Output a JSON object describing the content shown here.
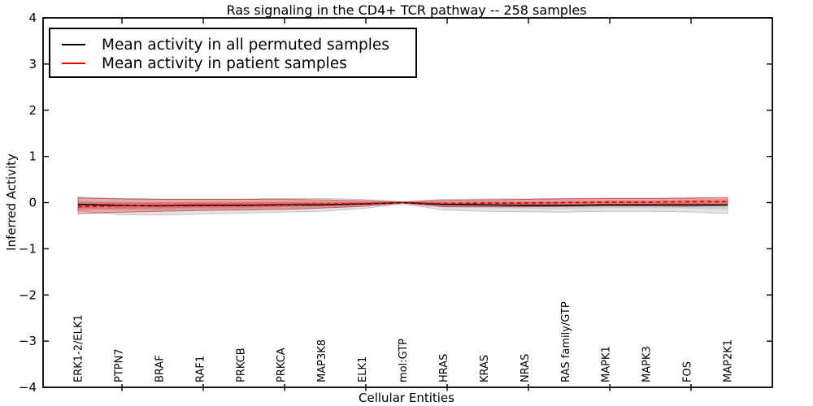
{
  "figure": {
    "title": "Ras signaling in the CD4+ TCR pathway -- 258 samples",
    "xlabel": "Cellular Entities",
    "ylabel": "Inferred Activity"
  },
  "legend": {
    "entries": [
      {
        "label": "Mean activity in all permuted samples",
        "color": "#000000"
      },
      {
        "label": "Mean activity in patient samples",
        "color": "#e60000"
      }
    ]
  },
  "chart_data": {
    "type": "line",
    "title": "Ras signaling in the CD4+ TCR pathway -- 258 samples",
    "xlabel": "Cellular Entities",
    "ylabel": "Inferred Activity",
    "ylim": [
      -4,
      4
    ],
    "grid": false,
    "legend_position": "upper left",
    "ytick_values": [
      4,
      3,
      2,
      1,
      0,
      -1,
      -2,
      -3,
      -4
    ],
    "ytick_labels": [
      "4",
      "3",
      "2",
      "1",
      "0",
      "−1",
      "−2",
      "−3",
      "−4"
    ],
    "categories": [
      "ERK1-2/ELK1",
      "PTPN7",
      "BRAF",
      "RAF1",
      "PRKCB",
      "PRKCA",
      "MAP3K8",
      "ELK1",
      "mol:GTP",
      "HRAS",
      "KRAS",
      "NRAS",
      "RAS family/GTP",
      "MAPK1",
      "MAPK3",
      "FOS",
      "MAP2K1"
    ],
    "series": [
      {
        "name": "Mean activity in all permuted samples",
        "color": "#000000",
        "line_style": "solid",
        "band_fill": "rgba(60,60,60,0.14)",
        "band_edge": "rgba(0,0,0,0.18)",
        "values": [
          -0.04,
          -0.06,
          -0.07,
          -0.06,
          -0.06,
          -0.05,
          -0.05,
          -0.03,
          0.0,
          -0.04,
          -0.05,
          -0.06,
          -0.06,
          -0.05,
          -0.05,
          -0.05,
          -0.05
        ],
        "band_upper": [
          0.12,
          0.09,
          0.08,
          0.08,
          0.08,
          0.09,
          0.09,
          0.07,
          0.02,
          0.07,
          0.08,
          0.08,
          0.09,
          0.09,
          0.09,
          0.09,
          0.08
        ],
        "band_lower": [
          -0.18,
          -0.26,
          -0.27,
          -0.25,
          -0.23,
          -0.21,
          -0.19,
          -0.13,
          -0.03,
          -0.16,
          -0.19,
          -0.2,
          -0.21,
          -0.19,
          -0.19,
          -0.2,
          -0.24
        ]
      },
      {
        "name": "Mean activity in patient samples",
        "color": "#e60000",
        "line_style": "dashed",
        "band_fill": "rgba(235,25,25,0.28)",
        "band_edge": "rgba(190,0,0,0.50)",
        "values": [
          -0.09,
          -0.07,
          -0.06,
          -0.05,
          -0.05,
          -0.04,
          -0.03,
          -0.02,
          0.0,
          -0.02,
          -0.01,
          -0.01,
          0.0,
          0.01,
          0.01,
          0.02,
          0.02
        ],
        "band_upper": [
          0.1,
          0.08,
          0.07,
          0.07,
          0.07,
          0.07,
          0.06,
          0.04,
          0.01,
          0.05,
          0.06,
          0.07,
          0.08,
          0.09,
          0.09,
          0.1,
          0.11
        ],
        "band_lower": [
          -0.24,
          -0.21,
          -0.19,
          -0.17,
          -0.16,
          -0.15,
          -0.12,
          -0.08,
          -0.01,
          -0.09,
          -0.09,
          -0.09,
          -0.08,
          -0.07,
          -0.07,
          -0.08,
          -0.06
        ]
      }
    ]
  }
}
